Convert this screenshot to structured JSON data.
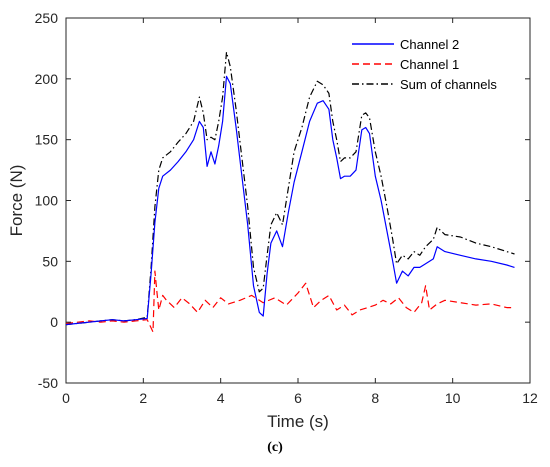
{
  "caption": "(c)",
  "colors": {
    "series_1": "#0000FF",
    "series_2": "#FF0000",
    "series_3": "#000000"
  },
  "chart_data": {
    "type": "line",
    "xlabel": "Time (s)",
    "ylabel": "Force (N)",
    "xlim": [
      0,
      12
    ],
    "ylim": [
      -50,
      250
    ],
    "xticks": [
      0,
      2,
      4,
      6,
      8,
      10,
      12
    ],
    "yticks": [
      -50,
      0,
      50,
      100,
      150,
      200,
      250
    ],
    "grid": false,
    "legend_position": "top-right",
    "series": [
      {
        "name": "Channel 2",
        "style": "solid",
        "x": [
          0,
          0.3,
          0.6,
          0.9,
          1.2,
          1.5,
          1.8,
          2.1,
          2.2,
          2.3,
          2.4,
          2.5,
          2.7,
          2.9,
          3.1,
          3.3,
          3.45,
          3.55,
          3.65,
          3.75,
          3.85,
          3.95,
          4.05,
          4.15,
          4.25,
          4.4,
          4.55,
          4.7,
          4.85,
          5.0,
          5.1,
          5.2,
          5.3,
          5.45,
          5.6,
          5.75,
          5.9,
          6.1,
          6.3,
          6.5,
          6.65,
          6.8,
          6.9,
          7.0,
          7.1,
          7.2,
          7.35,
          7.5,
          7.65,
          7.75,
          7.85,
          8.0,
          8.15,
          8.3,
          8.45,
          8.55,
          8.7,
          8.85,
          9.0,
          9.15,
          9.3,
          9.5,
          9.6,
          9.8,
          10.2,
          10.6,
          11.0,
          11.4,
          11.6
        ],
        "y": [
          -2,
          -1,
          0,
          1,
          2,
          1,
          2,
          3,
          40,
          82,
          110,
          120,
          125,
          132,
          140,
          150,
          165,
          160,
          128,
          140,
          130,
          145,
          165,
          202,
          196,
          160,
          120,
          80,
          30,
          8,
          5,
          40,
          65,
          75,
          62,
          90,
          115,
          140,
          165,
          180,
          182,
          175,
          150,
          135,
          118,
          120,
          120,
          125,
          158,
          160,
          155,
          120,
          100,
          75,
          50,
          32,
          42,
          38,
          45,
          45,
          48,
          52,
          62,
          58,
          55,
          52,
          50,
          47,
          45
        ]
      },
      {
        "name": "Channel 1",
        "style": "dashed",
        "x": [
          0,
          0.3,
          0.6,
          0.9,
          1.2,
          1.5,
          1.8,
          2.1,
          2.25,
          2.3,
          2.35,
          2.4,
          2.5,
          2.6,
          2.8,
          3.0,
          3.2,
          3.4,
          3.6,
          3.8,
          4.0,
          4.2,
          4.5,
          4.8,
          5.1,
          5.4,
          5.7,
          6.0,
          6.2,
          6.4,
          6.6,
          6.8,
          7.0,
          7.2,
          7.4,
          7.6,
          7.8,
          8.0,
          8.2,
          8.4,
          8.6,
          8.8,
          9.0,
          9.2,
          9.3,
          9.4,
          9.6,
          9.8,
          10.2,
          10.6,
          11.0,
          11.4,
          11.6
        ],
        "y": [
          -1,
          0,
          1,
          0,
          1,
          0,
          1,
          2,
          -8,
          42,
          25,
          10,
          22,
          18,
          12,
          20,
          15,
          8,
          18,
          12,
          20,
          15,
          18,
          22,
          16,
          20,
          14,
          24,
          32,
          12,
          18,
          22,
          10,
          14,
          6,
          10,
          12,
          14,
          18,
          15,
          20,
          12,
          8,
          16,
          30,
          10,
          15,
          18,
          16,
          14,
          15,
          12,
          12
        ]
      },
      {
        "name": "Sum of channels",
        "style": "dashdot",
        "x": [
          0,
          0.3,
          0.6,
          0.9,
          1.2,
          1.5,
          1.8,
          2.1,
          2.2,
          2.3,
          2.4,
          2.5,
          2.7,
          2.9,
          3.1,
          3.3,
          3.45,
          3.55,
          3.65,
          3.75,
          3.85,
          3.95,
          4.05,
          4.15,
          4.25,
          4.4,
          4.55,
          4.7,
          4.85,
          5.0,
          5.1,
          5.2,
          5.3,
          5.45,
          5.6,
          5.75,
          5.9,
          6.1,
          6.3,
          6.5,
          6.65,
          6.8,
          6.9,
          7.0,
          7.1,
          7.2,
          7.35,
          7.5,
          7.65,
          7.75,
          7.85,
          8.0,
          8.15,
          8.3,
          8.45,
          8.55,
          8.7,
          8.85,
          9.0,
          9.15,
          9.3,
          9.5,
          9.6,
          9.8,
          10.2,
          10.6,
          11.0,
          11.4,
          11.6
        ],
        "y": [
          -2,
          -1,
          0,
          1,
          2,
          1,
          2,
          4,
          45,
          95,
          125,
          135,
          140,
          148,
          155,
          165,
          185,
          172,
          150,
          152,
          150,
          165,
          185,
          222,
          210,
          175,
          135,
          95,
          45,
          25,
          28,
          55,
          80,
          90,
          80,
          110,
          140,
          160,
          185,
          198,
          195,
          188,
          165,
          150,
          132,
          135,
          135,
          140,
          170,
          172,
          168,
          140,
          120,
          95,
          68,
          48,
          55,
          52,
          58,
          55,
          62,
          68,
          78,
          72,
          70,
          65,
          62,
          58,
          56
        ]
      }
    ]
  }
}
